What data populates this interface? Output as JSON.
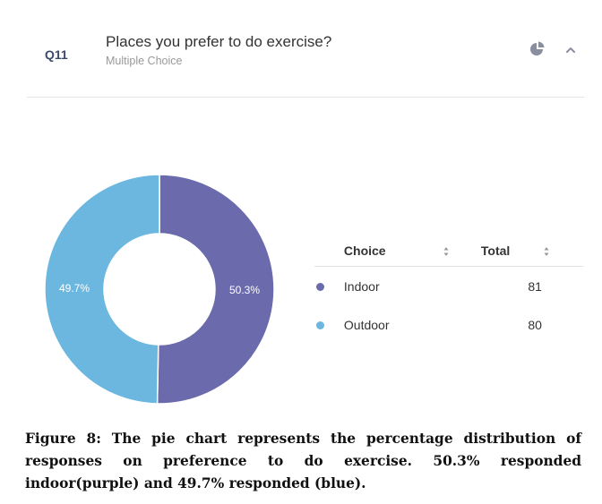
{
  "question": {
    "number": "Q11",
    "title": "Places you prefer to do exercise?",
    "type": "Multiple Choice",
    "icons": [
      "pie-chart-icon",
      "chevron-up-icon"
    ]
  },
  "table": {
    "headers": {
      "choice": "Choice",
      "total": "Total"
    },
    "rows": [
      {
        "choice": "Indoor",
        "total": "81",
        "color": "#6a6aad"
      },
      {
        "choice": "Outdoor",
        "total": "80",
        "color": "#6bb7e0"
      }
    ]
  },
  "chart_data": {
    "type": "pie",
    "donut": true,
    "categories": [
      "Indoor",
      "Outdoor"
    ],
    "values": [
      50.3,
      49.7
    ],
    "counts": [
      81,
      80
    ],
    "labels": [
      "50.3%",
      "49.7%"
    ],
    "colors": [
      "#6a6aad",
      "#6bb7e0"
    ]
  },
  "caption": "Figure 8: The pie chart represents the percentage distribution of responses on preference to do exercise. 50.3% responded indoor(purple) and 49.7% responded (blue)."
}
